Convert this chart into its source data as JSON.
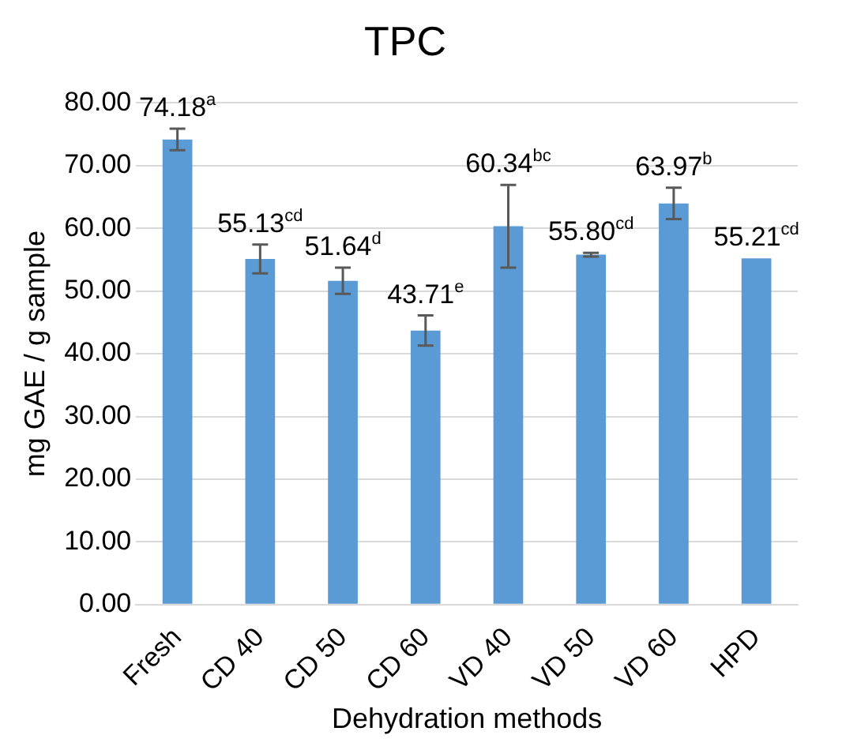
{
  "chart_data": {
    "type": "bar",
    "title": "TPC",
    "xlabel": "Dehydration methods",
    "ylabel": "mg GAE / g sample",
    "categories": [
      "Fresh",
      "CD 40",
      "CD 50",
      "CD 60",
      "VD 40",
      "VD 50",
      "VD 60",
      "HPD"
    ],
    "values": [
      74.18,
      55.13,
      51.64,
      43.71,
      60.34,
      55.8,
      63.97,
      55.21
    ],
    "errors": [
      1.7,
      2.3,
      2.1,
      2.4,
      6.6,
      0.3,
      2.5,
      null
    ],
    "value_labels": [
      "74.18$^{a}$",
      "55.13$^{cd}$",
      "51.64$^{d}$",
      "43.71$^{e}$",
      "60.34$^{bc}$",
      "55.80$^{cd}$",
      "63.97$^{b}$",
      "55.21$^{cd}$"
    ],
    "color": "#5b9bd5",
    "ylim": [
      0,
      80
    ],
    "yticks": [
      {
        "value": 0,
        "label": "0.00"
      },
      {
        "value": 10,
        "label": "10.00"
      },
      {
        "value": 20,
        "label": "20.00"
      },
      {
        "value": 30,
        "label": "30.00"
      },
      {
        "value": 40,
        "label": "40.00"
      },
      {
        "value": 50,
        "label": "50.00"
      },
      {
        "value": 60,
        "label": "60.00"
      },
      {
        "value": 70,
        "label": "70.00"
      },
      {
        "value": 80,
        "label": "80.00"
      }
    ],
    "grid": "y",
    "legend": false
  }
}
